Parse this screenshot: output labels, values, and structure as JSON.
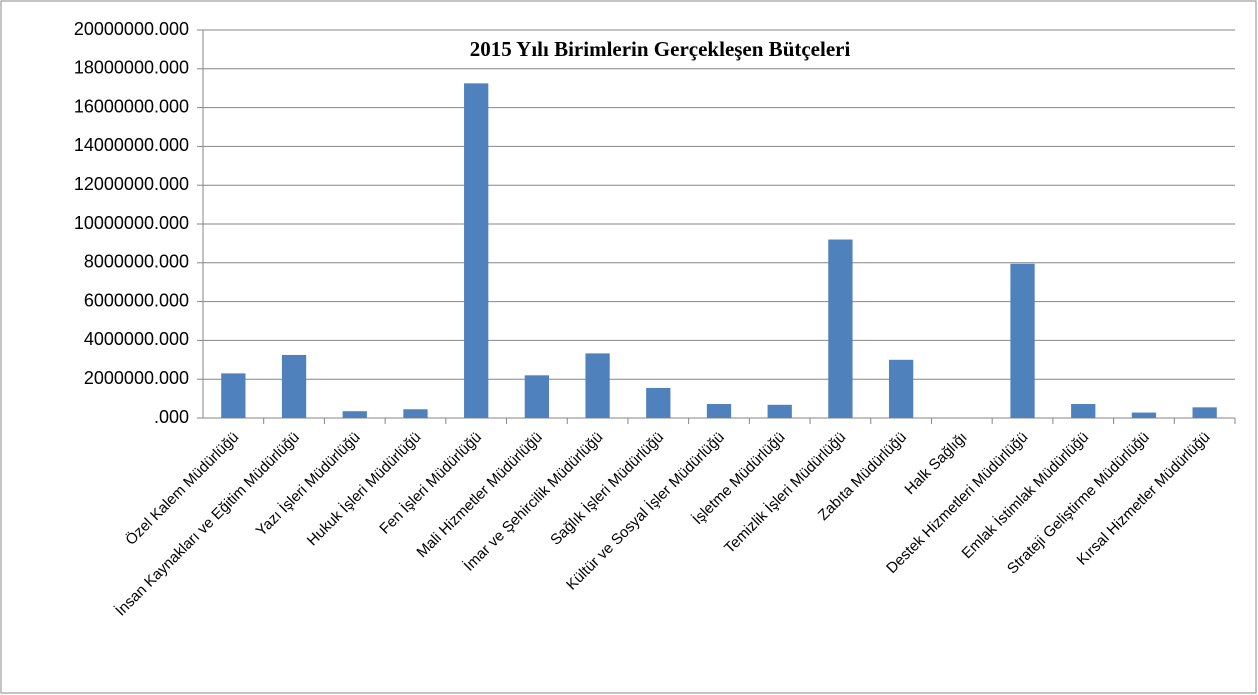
{
  "chart_data": {
    "type": "bar",
    "title": "2015 Yılı Birimlerin Gerçekleşen Bütçeleri",
    "categories": [
      "Özel Kalem Müdürlüğü",
      "İnsan Kaynakları ve Eğitim Müdürlüğü",
      "Yazı İşleri Müdürlüğü",
      "Hukuk İşleri Müdürlüğü",
      "Fen İşleri Müdürlüğü",
      "Mali Hizmetler Müdürlüğü",
      "İmar ve Şehircilik Müdürlüğü",
      "Sağlık İşleri Müdürlüğü",
      "Kültür ve Sosyal İşler Müdürlüğü",
      "İşletme Müdürlüğü",
      "Temizlik İşleri Müdürlüğü",
      "Zabıta Müdürlüğü",
      "Halk Sağlığı",
      "Destek Hizmetleri Müdürlüğü",
      "Emlak İstimlak  Müdürlüğü",
      "Strateji Geliştirme Müdürlüğü",
      "Kırsal Hizmetler Müdürlüğü"
    ],
    "values": [
      2300000,
      3250000,
      350000,
      450000,
      17250000,
      2200000,
      3330000,
      1550000,
      720000,
      680000,
      9200000,
      3000000,
      0,
      7950000,
      720000,
      280000,
      550000
    ],
    "color": "#4f81bd",
    "ylim": [
      0,
      20000000
    ],
    "yticks": [
      {
        "value": 0,
        "label": ".000"
      },
      {
        "value": 2000000,
        "label": "2000000.000"
      },
      {
        "value": 4000000,
        "label": "4000000.000"
      },
      {
        "value": 6000000,
        "label": "6000000.000"
      },
      {
        "value": 8000000,
        "label": "8000000.000"
      },
      {
        "value": 10000000,
        "label": "10000000.000"
      },
      {
        "value": 12000000,
        "label": "12000000.000"
      },
      {
        "value": 14000000,
        "label": "14000000.000"
      },
      {
        "value": 16000000,
        "label": "16000000.000"
      },
      {
        "value": 18000000,
        "label": "18000000.000"
      },
      {
        "value": 20000000,
        "label": "20000000.000"
      }
    ],
    "grid": true
  }
}
